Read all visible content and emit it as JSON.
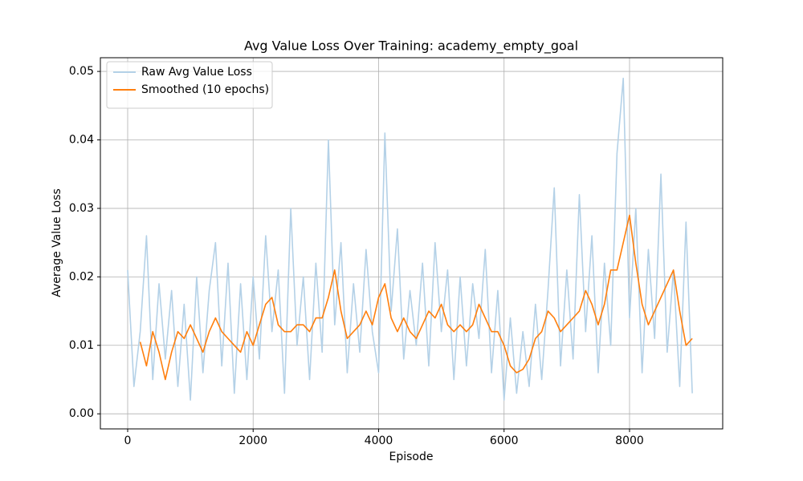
{
  "chart_data": {
    "type": "line",
    "title": "Avg Value Loss Over Training: academy_empty_goal",
    "x_label": "Episode",
    "y_label": "Average Value Loss",
    "xlim": [
      -435,
      9485
    ],
    "ylim": [
      -0.0022,
      0.052
    ],
    "xticks": [
      0,
      2000,
      4000,
      6000,
      8000
    ],
    "yticks": [
      {
        "value": 0,
        "label": "0.00"
      },
      0.01,
      0.02,
      0.03,
      0.04,
      0.05
    ],
    "grid": true,
    "legend": "upper left",
    "series": [
      {
        "name": "Raw Avg Value Loss",
        "color": "#b4d1e7",
        "x": [
          0,
          100,
          200,
          300,
          400,
          500,
          600,
          700,
          800,
          900,
          1000,
          1100,
          1200,
          1300,
          1400,
          1500,
          1600,
          1700,
          1800,
          1900,
          2000,
          2100,
          2200,
          2300,
          2400,
          2500,
          2600,
          2700,
          2800,
          2900,
          3000,
          3100,
          3200,
          3300,
          3400,
          3500,
          3600,
          3700,
          3800,
          3900,
          4000,
          4100,
          4200,
          4300,
          4400,
          4500,
          4600,
          4700,
          4800,
          4900,
          5000,
          5100,
          5200,
          5300,
          5400,
          5500,
          5600,
          5700,
          5800,
          5900,
          6000,
          6100,
          6200,
          6300,
          6400,
          6500,
          6600,
          6700,
          6800,
          6900,
          7000,
          7100,
          7200,
          7300,
          7400,
          7500,
          7600,
          7700,
          7800,
          7900,
          8000,
          8100,
          8200,
          8300,
          8400,
          8500,
          8600,
          8700,
          8800,
          8900,
          9000
        ],
        "values": [
          0.021,
          0.004,
          0.012,
          0.026,
          0.005,
          0.019,
          0.008,
          0.018,
          0.004,
          0.016,
          0.002,
          0.02,
          0.006,
          0.018,
          0.025,
          0.007,
          0.022,
          0.003,
          0.019,
          0.005,
          0.02,
          0.008,
          0.026,
          0.012,
          0.021,
          0.003,
          0.03,
          0.01,
          0.02,
          0.005,
          0.022,
          0.009,
          0.04,
          0.013,
          0.025,
          0.006,
          0.019,
          0.009,
          0.024,
          0.012,
          0.006,
          0.041,
          0.015,
          0.027,
          0.008,
          0.018,
          0.01,
          0.022,
          0.007,
          0.025,
          0.012,
          0.021,
          0.005,
          0.02,
          0.007,
          0.019,
          0.011,
          0.024,
          0.006,
          0.018,
          0.002,
          0.014,
          0.003,
          0.012,
          0.004,
          0.016,
          0.005,
          0.018,
          0.033,
          0.007,
          0.021,
          0.008,
          0.032,
          0.012,
          0.026,
          0.006,
          0.022,
          0.01,
          0.038,
          0.049,
          0.014,
          0.03,
          0.006,
          0.024,
          0.011,
          0.035,
          0.009,
          0.021,
          0.004,
          0.028,
          0.003
        ]
      },
      {
        "name": "Smoothed (10 epochs)",
        "color": "#ff7f0e",
        "x": [
          200,
          300,
          400,
          500,
          600,
          700,
          800,
          900,
          1000,
          1100,
          1200,
          1300,
          1400,
          1500,
          1600,
          1700,
          1800,
          1900,
          2000,
          2100,
          2200,
          2300,
          2400,
          2500,
          2600,
          2700,
          2800,
          2900,
          3000,
          3100,
          3200,
          3300,
          3400,
          3500,
          3600,
          3700,
          3800,
          3900,
          4000,
          4100,
          4200,
          4300,
          4400,
          4500,
          4600,
          4700,
          4800,
          4900,
          5000,
          5100,
          5200,
          5300,
          5400,
          5500,
          5600,
          5700,
          5800,
          5900,
          6000,
          6100,
          6200,
          6300,
          6400,
          6500,
          6600,
          6700,
          6800,
          6900,
          7000,
          7100,
          7200,
          7300,
          7400,
          7500,
          7600,
          7700,
          7800,
          7900,
          8000,
          8100,
          8200,
          8300,
          8400,
          8500,
          8600,
          8700,
          8800,
          8900,
          9000
        ],
        "values": [
          0.0105,
          0.007,
          0.012,
          0.009,
          0.005,
          0.009,
          0.012,
          0.011,
          0.013,
          0.011,
          0.009,
          0.012,
          0.014,
          0.012,
          0.011,
          0.01,
          0.009,
          0.012,
          0.01,
          0.013,
          0.016,
          0.017,
          0.013,
          0.012,
          0.012,
          0.013,
          0.013,
          0.012,
          0.014,
          0.014,
          0.017,
          0.021,
          0.015,
          0.011,
          0.012,
          0.013,
          0.015,
          0.013,
          0.017,
          0.019,
          0.014,
          0.012,
          0.014,
          0.012,
          0.011,
          0.013,
          0.015,
          0.014,
          0.016,
          0.013,
          0.012,
          0.013,
          0.012,
          0.013,
          0.016,
          0.014,
          0.012,
          0.012,
          0.01,
          0.007,
          0.006,
          0.0065,
          0.008,
          0.011,
          0.012,
          0.015,
          0.014,
          0.012,
          0.013,
          0.014,
          0.015,
          0.018,
          0.016,
          0.013,
          0.016,
          0.021,
          0.021,
          0.025,
          0.029,
          0.022,
          0.016,
          0.013,
          0.015,
          0.017,
          0.019,
          0.021,
          0.015,
          0.01,
          0.011
        ]
      }
    ]
  }
}
